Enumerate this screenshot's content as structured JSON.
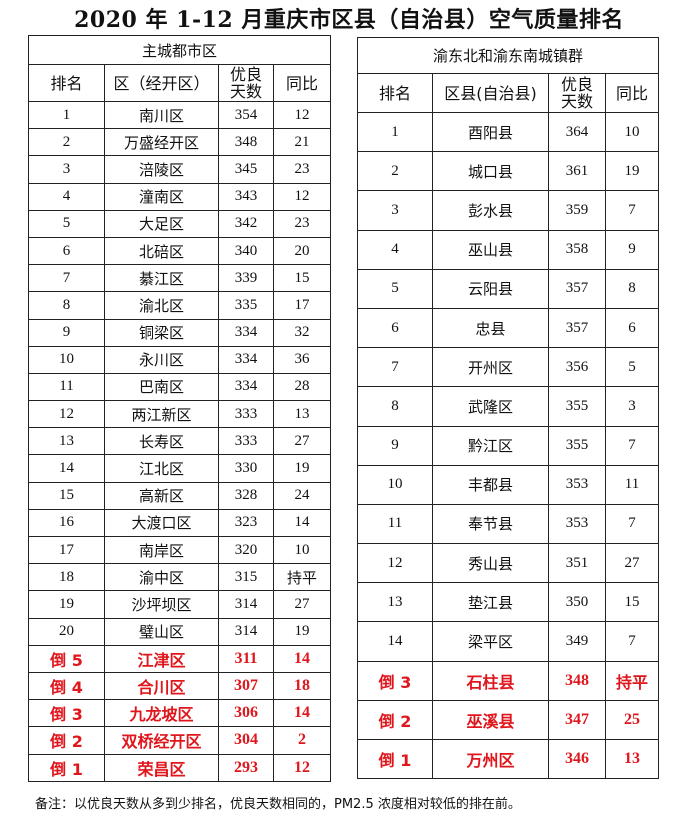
{
  "title": "2020 年 1-12 月重庆市区县（自治县）空气质量排名",
  "left": {
    "group": "主城都市区",
    "headers": [
      "排名",
      "区（经开区）",
      "优良天数",
      "同比"
    ],
    "rows": [
      [
        "1",
        "南川区",
        "354",
        "12"
      ],
      [
        "2",
        "万盛经开区",
        "348",
        "21"
      ],
      [
        "3",
        "涪陵区",
        "345",
        "23"
      ],
      [
        "4",
        "潼南区",
        "343",
        "12"
      ],
      [
        "5",
        "大足区",
        "342",
        "23"
      ],
      [
        "6",
        "北碚区",
        "340",
        "20"
      ],
      [
        "7",
        "綦江区",
        "339",
        "15"
      ],
      [
        "8",
        "渝北区",
        "335",
        "17"
      ],
      [
        "9",
        "铜梁区",
        "334",
        "32"
      ],
      [
        "10",
        "永川区",
        "334",
        "36"
      ],
      [
        "11",
        "巴南区",
        "334",
        "28"
      ],
      [
        "12",
        "两江新区",
        "333",
        "13"
      ],
      [
        "13",
        "长寿区",
        "333",
        "27"
      ],
      [
        "14",
        "江北区",
        "330",
        "19"
      ],
      [
        "15",
        "高新区",
        "328",
        "24"
      ],
      [
        "16",
        "大渡口区",
        "323",
        "14"
      ],
      [
        "17",
        "南岸区",
        "320",
        "10"
      ],
      [
        "18",
        "渝中区",
        "315",
        "持平"
      ],
      [
        "19",
        "沙坪坝区",
        "314",
        "27"
      ],
      [
        "20",
        "璧山区",
        "314",
        "19"
      ]
    ],
    "bottom": [
      [
        "倒 5",
        "江津区",
        "311",
        "14"
      ],
      [
        "倒 4",
        "合川区",
        "307",
        "18"
      ],
      [
        "倒 3",
        "九龙坡区",
        "306",
        "14"
      ],
      [
        "倒 2",
        "双桥经开区",
        "304",
        "2"
      ],
      [
        "倒 1",
        "荣昌区",
        "293",
        "12"
      ]
    ]
  },
  "right": {
    "group": "渝东北和渝东南城镇群",
    "headers": [
      "排名",
      "区县(自治县)",
      "优良天数",
      "同比"
    ],
    "rows": [
      [
        "1",
        "酉阳县",
        "364",
        "10"
      ],
      [
        "2",
        "城口县",
        "361",
        "19"
      ],
      [
        "3",
        "彭水县",
        "359",
        "7"
      ],
      [
        "4",
        "巫山县",
        "358",
        "9"
      ],
      [
        "5",
        "云阳县",
        "357",
        "8"
      ],
      [
        "6",
        "忠县",
        "357",
        "6"
      ],
      [
        "7",
        "开州区",
        "356",
        "5"
      ],
      [
        "8",
        "武隆区",
        "355",
        "3"
      ],
      [
        "9",
        "黔江区",
        "355",
        "7"
      ],
      [
        "10",
        "丰都县",
        "353",
        "11"
      ],
      [
        "11",
        "奉节县",
        "353",
        "7"
      ],
      [
        "12",
        "秀山县",
        "351",
        "27"
      ],
      [
        "13",
        "垫江县",
        "350",
        "15"
      ],
      [
        "14",
        "梁平区",
        "349",
        "7"
      ]
    ],
    "bottom": [
      [
        "倒 3",
        "石柱县",
        "348",
        "持平"
      ],
      [
        "倒 2",
        "巫溪县",
        "347",
        "25"
      ],
      [
        "倒 1",
        "万州区",
        "346",
        "13"
      ]
    ]
  },
  "note": "备注：以优良天数从多到少排名，优良天数相同的，PM2.5 浓度相对较低的排在前。",
  "colors": {
    "highlight": "#e0161d"
  }
}
